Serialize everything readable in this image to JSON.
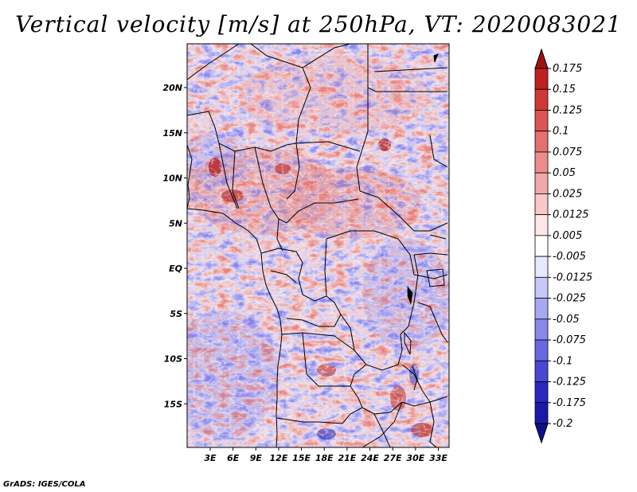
{
  "title": "Vertical velocity [m/s] at 250hPa, VT: 2020083021",
  "credit": "GrADS: IGES/COLA",
  "lat_ticks": [
    {
      "label": "20N",
      "value": 20
    },
    {
      "label": "15N",
      "value": 15
    },
    {
      "label": "10N",
      "value": 10
    },
    {
      "label": "5N",
      "value": 5
    },
    {
      "label": "EQ",
      "value": 0
    },
    {
      "label": "5S",
      "value": -5
    },
    {
      "label": "10S",
      "value": -10
    },
    {
      "label": "15S",
      "value": -15
    }
  ],
  "lon_ticks": [
    {
      "label": "3E",
      "value": 3
    },
    {
      "label": "6E",
      "value": 6
    },
    {
      "label": "9E",
      "value": 9
    },
    {
      "label": "12E",
      "value": 12
    },
    {
      "label": "15E",
      "value": 15
    },
    {
      "label": "18E",
      "value": 18
    },
    {
      "label": "21E",
      "value": 21
    },
    {
      "label": "24E",
      "value": 24
    },
    {
      "label": "27E",
      "value": 27
    },
    {
      "label": "30E",
      "value": 30
    },
    {
      "label": "33E",
      "value": 33
    }
  ],
  "colorbar": {
    "labels": [
      "0.175",
      "0.15",
      "0.125",
      "0.1",
      "0.075",
      "0.05",
      "0.025",
      "0.0125",
      "0.005",
      "-0.005",
      "-0.0125",
      "-0.025",
      "-0.05",
      "-0.075",
      "-0.1",
      "-0.125",
      "-0.175",
      "-0.2"
    ],
    "colors": [
      "#a01010",
      "#be2020",
      "#d03838",
      "#dc5454",
      "#e47070",
      "#ec8c8c",
      "#f2a8a8",
      "#f8c8c8",
      "#fce6e6",
      "#ffffff",
      "#e8e8fc",
      "#c8c8f8",
      "#a8a8f2",
      "#8888ea",
      "#6868e0",
      "#4848d4",
      "#2828c0",
      "#1a1aa8",
      "#10108c"
    ]
  }
}
